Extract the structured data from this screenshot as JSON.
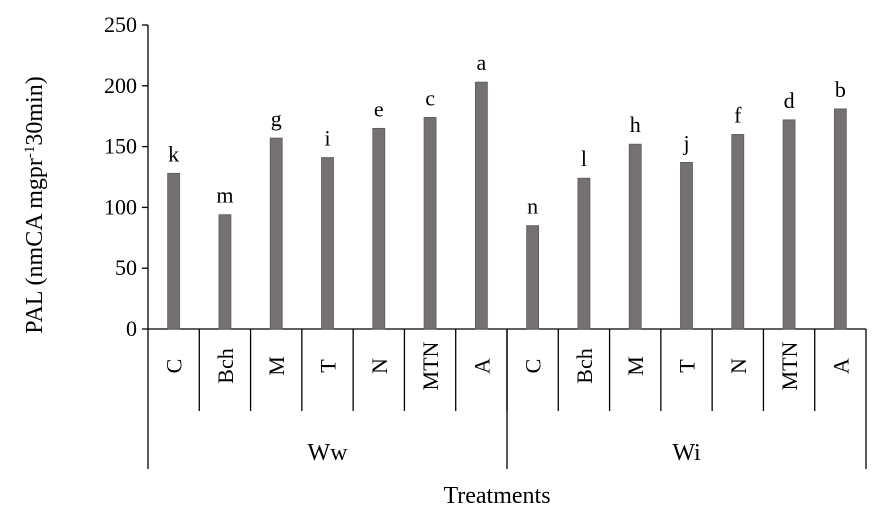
{
  "chart_data": {
    "type": "bar",
    "ylabel_main": "PAL (nmCA mgpr",
    "ylabel_sup": "-1",
    "ylabel_rest": "30min)",
    "xlabel": "Treatments",
    "ylim": [
      0,
      250
    ],
    "yticks": [
      0,
      50,
      100,
      150,
      200,
      250
    ],
    "grid": false,
    "bar_color": "#767171",
    "groups": [
      {
        "name": "Ww",
        "categories": [
          "C",
          "Bch",
          "M",
          "T",
          "N",
          "MTN",
          "A"
        ],
        "values": [
          128,
          94,
          157,
          141,
          165,
          174,
          203
        ],
        "letters": [
          "k",
          "m",
          "g",
          "i",
          "e",
          "c",
          "a"
        ]
      },
      {
        "name": "Wi",
        "categories": [
          "C",
          "Bch",
          "M",
          "T",
          "N",
          "MTN",
          "A"
        ],
        "values": [
          85,
          124,
          152,
          137,
          160,
          172,
          181
        ],
        "letters": [
          "n",
          "l",
          "h",
          "j",
          "f",
          "d",
          "b"
        ]
      }
    ]
  }
}
